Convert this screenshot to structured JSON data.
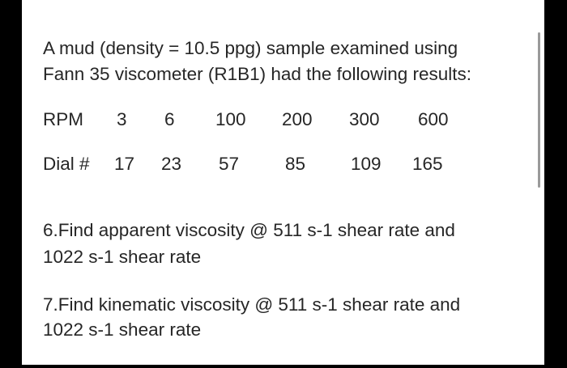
{
  "intro": {
    "line1": "A mud (density = 10.5 ppg) sample examined using",
    "line2": "Fann 35 viscometer (R1B1) had the following results:"
  },
  "table": {
    "rpm_label": "RPM",
    "rpm": [
      "3",
      "6",
      "100",
      "200",
      "300",
      "600"
    ],
    "dial_label": "Dial #",
    "dial": [
      "17",
      "23",
      "57",
      "85",
      "109",
      "165"
    ]
  },
  "questions": [
    {
      "line1": "6.Find apparent viscosity @ 511 s-1 shear rate and",
      "line2": "1022 s-1 shear rate"
    },
    {
      "line1": "7.Find kinematic viscosity @ 511 s-1 shear rate and",
      "line2": "1022 s-1 shear rate"
    }
  ]
}
